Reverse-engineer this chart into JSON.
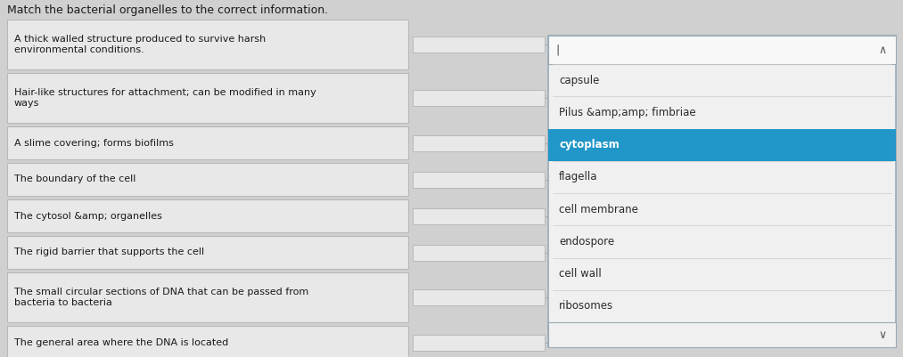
{
  "title": "Match the bacterial organelles to the correct information.",
  "bg_color": "#d0d0d0",
  "left_box_bg": "#e8e8e8",
  "left_box_border": "#b8b8b8",
  "dropdown_bg": "#f0f0f0",
  "dropdown_border": "#9aabb8",
  "highlight_color": "#2196c8",
  "highlight_text_color": "#ffffff",
  "text_color": "#1a1a1a",
  "dropdown_text_color": "#2a2a2a",
  "left_items": [
    "A thick walled structure produced to survive harsh\nenvironmental conditions.",
    "Hair-like structures for attachment; can be modified in many\nways",
    "A slime covering; forms biofilms",
    "The boundary of the cell",
    "The cytosol &amp; organelles",
    "The rigid barrier that supports the cell",
    "The small circular sections of DNA that can be passed from\nbacteria to bacteria",
    "The general area where the DNA is located"
  ],
  "dropdown_top_item": "",
  "dropdown_items": [
    "capsule",
    "Pilus &amp;amp; fimbriae",
    "cytoplasm",
    "flagella",
    "cell membrane",
    "endospore",
    "cell wall",
    "ribosomes"
  ],
  "highlighted_index": 2,
  "figw": 10.13,
  "figh": 4.01,
  "dpi": 100
}
